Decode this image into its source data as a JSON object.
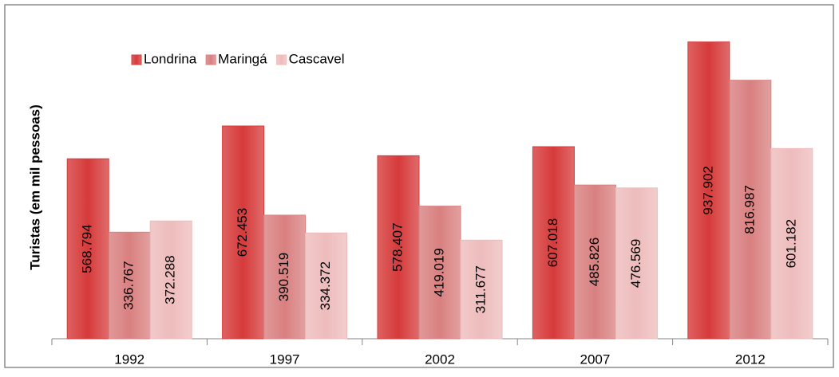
{
  "chart_data": {
    "type": "bar",
    "y_label": "Turistas (em mil pessoas)",
    "categories": [
      "1992",
      "1997",
      "2002",
      "2007",
      "2012"
    ],
    "series": [
      {
        "name": "Londrina",
        "color": "#d63a3a",
        "values": [
          568.794,
          672.453,
          578.407,
          607.018,
          937.902
        ]
      },
      {
        "name": "Maringá",
        "color": "#d98080",
        "values": [
          336.767,
          390.519,
          419.019,
          485.826,
          816.987
        ]
      },
      {
        "name": "Cascavel",
        "color": "#eebcbc",
        "values": [
          372.288,
          334.372,
          311.677,
          476.569,
          601.182
        ]
      }
    ],
    "ylim": [
      0,
      1000
    ],
    "legend": "top-left",
    "grid": false
  }
}
